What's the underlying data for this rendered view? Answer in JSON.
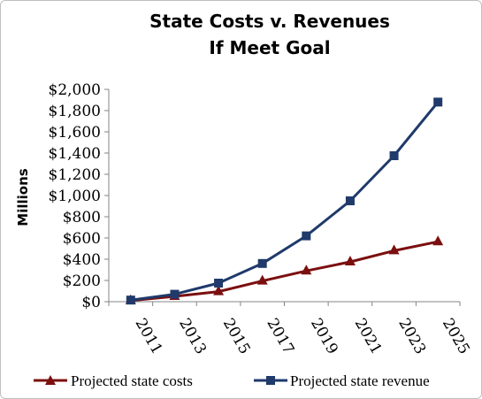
{
  "chart_data": {
    "type": "line",
    "title_line1": "State Costs v. Revenues",
    "title_line2": "If Meet Goal",
    "ylabel": "Millions",
    "categories": [
      "2011",
      "2013",
      "2015",
      "2017",
      "2019",
      "2021",
      "2023",
      "2025"
    ],
    "y_tick_labels": [
      "$0",
      "$200",
      "$400",
      "$600",
      "$800",
      "$1,000",
      "$1,200",
      "$1,400",
      "$1,600",
      "$1,800",
      "$2,000"
    ],
    "ylim": [
      0,
      2000
    ],
    "y_tick_step": 200,
    "grid": false,
    "legend_position": "bottom",
    "series": [
      {
        "name": "Projected state costs",
        "marker": "triangle",
        "color": "#7b0f0f",
        "values": [
          10,
          50,
          95,
          195,
          290,
          375,
          480,
          565
        ]
      },
      {
        "name": "Projected state revenue",
        "marker": "square",
        "color": "#1f3a6b",
        "values": [
          15,
          70,
          175,
          360,
          620,
          950,
          1375,
          1880
        ]
      }
    ]
  }
}
